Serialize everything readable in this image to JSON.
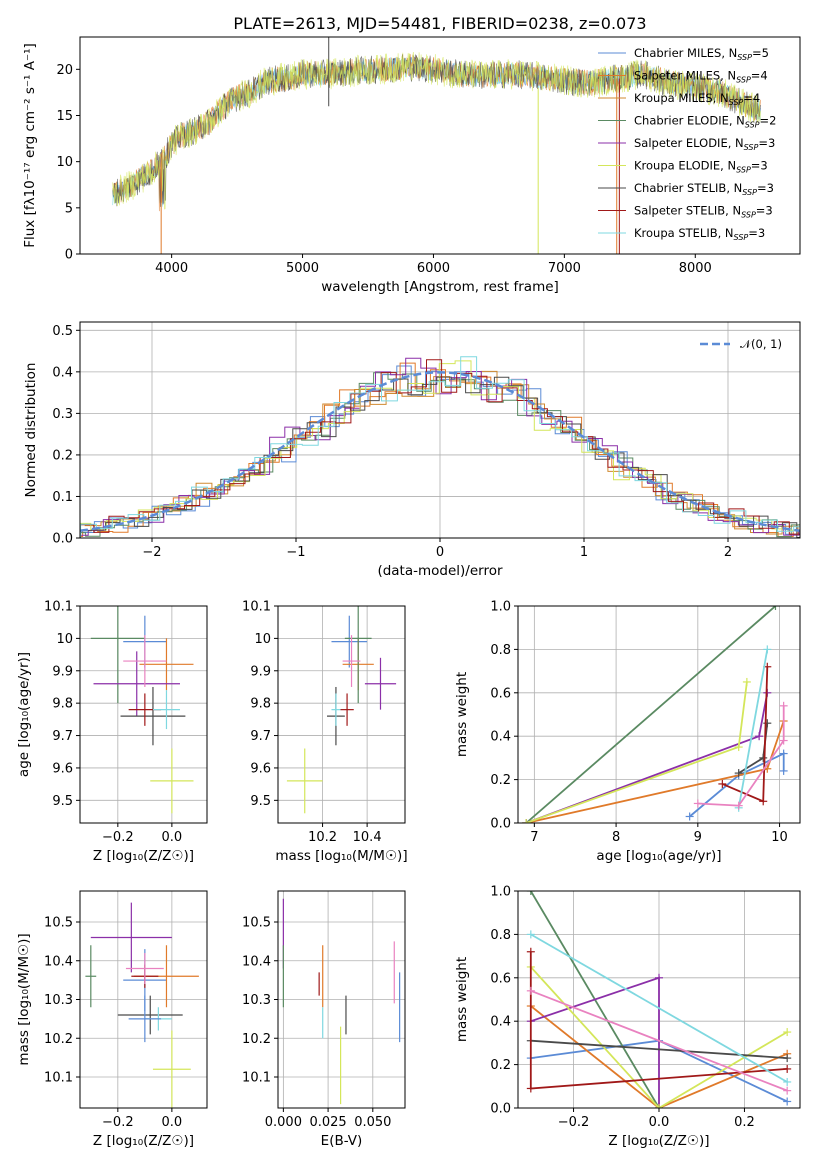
{
  "figure": {
    "title": "PLATE=2613, MJD=54481, FIBERID=0238, z=0.073"
  },
  "colors": {
    "Chabrier MILES": "#5b8bd6",
    "Salpeter MILES": "#e07a2a",
    "Kroupa MILES": "#d08a30",
    "Chabrier ELODIE": "#5a8a62",
    "Salpeter ELODIE": "#8b2fa8",
    "Kroupa ELODIE": "#d4e65a",
    "Chabrier STELIB": "#4a4a4a",
    "Salpeter STELIB": "#a01818",
    "Kroupa STELIB": "#7fd8e0",
    "pink": "#e982c0",
    "gaussian": "#5b8bd6"
  },
  "chart_data": [
    {
      "id": "spectrum",
      "type": "line",
      "title": "PLATE=2613, MJD=54481, FIBERID=0238, z=0.073",
      "xlabel": "wavelength [Angstrom, rest frame]",
      "ylabel": "Flux [fλ10⁻¹⁷ erg cm⁻² s⁻¹ A⁻¹]",
      "xlim": [
        3300,
        8800
      ],
      "ylim": [
        0,
        23.5
      ],
      "xticks": [
        4000,
        5000,
        6000,
        7000,
        8000
      ],
      "yticks": [
        0,
        5,
        10,
        15,
        20
      ],
      "grid": false,
      "legend_position": "top-right",
      "continuum": {
        "x": [
          3550,
          3700,
          3850,
          3950,
          4000,
          4100,
          4200,
          4300,
          4400,
          4500,
          4600,
          4700,
          4800,
          4900,
          5000,
          5200,
          5400,
          5600,
          5800,
          6000,
          6200,
          6400,
          6600,
          6800,
          7000,
          7200,
          7400,
          7600,
          7800,
          8000,
          8200,
          8400,
          8500
        ],
        "y": [
          6.5,
          7.5,
          9.0,
          10.5,
          12.0,
          13.0,
          13.5,
          14.5,
          16.0,
          17.0,
          17.5,
          18.5,
          19.0,
          19.0,
          19.5,
          19.5,
          19.8,
          20.0,
          20.3,
          20.0,
          19.5,
          19.3,
          19.5,
          19.2,
          18.8,
          18.5,
          19.0,
          19.5,
          18.5,
          18.0,
          17.5,
          16.0,
          15.5
        ]
      },
      "legend": [
        "Chabrier MILES, NSSP=5",
        "Salpeter MILES, NSSP=4",
        "Kroupa MILES, NSSP=4",
        "Chabrier ELODIE, NSSP=2",
        "Salpeter ELODIE, NSSP=3",
        "Kroupa ELODIE, NSSP=3",
        "Chabrier STELIB, NSSP=3",
        "Salpeter STELIB, NSSP=3",
        "Kroupa STELIB, NSSP=3"
      ]
    },
    {
      "id": "residuals",
      "type": "bar",
      "xlabel": "(data-model)/error",
      "ylabel": "Normed distribution",
      "xlim": [
        -2.5,
        2.5
      ],
      "ylim": [
        0,
        0.52
      ],
      "xticks": [
        -2,
        -1,
        0,
        1,
        2
      ],
      "yticks": [
        0.0,
        0.1,
        0.2,
        0.3,
        0.4,
        0.5
      ],
      "grid": true,
      "legend_position": "top-right",
      "gaussian_label": "𝒩(0, 1)",
      "series_colors": [
        "Chabrier MILES",
        "Salpeter MILES",
        "Kroupa MILES",
        "Chabrier ELODIE",
        "Salpeter ELODIE",
        "Kroupa ELODIE",
        "Chabrier STELIB",
        "Salpeter STELIB",
        "Kroupa STELIB"
      ]
    },
    {
      "id": "age_Z",
      "type": "scatter",
      "xlabel": "Z [log₁₀(Z/Z☉)]",
      "ylabel": "age  [log₁₀(age/yr)]",
      "xlim": [
        -0.34,
        0.13
      ],
      "ylim": [
        9.43,
        10.1
      ],
      "xticks": [
        -0.2,
        0.0
      ],
      "xticklabels": [
        "−0.2",
        "0.0"
      ],
      "yticks": [
        9.5,
        9.6,
        9.7,
        9.8,
        9.9,
        10.0,
        10.1
      ],
      "grid": true,
      "points": [
        {
          "color": "Chabrier MILES",
          "x": -0.1,
          "y": 9.99,
          "xerr": 0.08,
          "yerr": 0.08
        },
        {
          "color": "Salpeter MILES",
          "x": -0.02,
          "y": 9.92,
          "xerr": 0.1,
          "yerr": 0.08
        },
        {
          "color": "Chabrier ELODIE",
          "x": -0.2,
          "y": 10.0,
          "xerr": 0.1,
          "yerr": 0.2
        },
        {
          "color": "Salpeter ELODIE",
          "x": -0.13,
          "y": 9.86,
          "xerr": 0.16,
          "yerr": 0.1
        },
        {
          "color": "Kroupa ELODIE",
          "x": 0.0,
          "y": 9.56,
          "xerr": 0.08,
          "yerr": 0.1
        },
        {
          "color": "Chabrier STELIB",
          "x": -0.07,
          "y": 9.76,
          "xerr": 0.12,
          "yerr": 0.09
        },
        {
          "color": "Salpeter STELIB",
          "x": -0.1,
          "y": 9.78,
          "xerr": 0.06,
          "yerr": 0.05
        },
        {
          "color": "Kroupa STELIB",
          "x": -0.02,
          "y": 9.78,
          "xerr": 0.05,
          "yerr": 0.06
        },
        {
          "color": "pink",
          "x": -0.1,
          "y": 9.93,
          "xerr": 0.08,
          "yerr": 0.08
        }
      ]
    },
    {
      "id": "age_mass",
      "type": "scatter",
      "xlabel": "mass [log₁₀(M/M☉)]",
      "ylabel": "",
      "xlim": [
        10.0,
        10.57
      ],
      "ylim": [
        9.43,
        10.1
      ],
      "xticks": [
        10.2,
        10.4
      ],
      "yticks": [
        9.5,
        9.6,
        9.7,
        9.8,
        9.9,
        10.0,
        10.1
      ],
      "grid": true,
      "points": [
        {
          "color": "Chabrier MILES",
          "x": 10.32,
          "y": 9.99,
          "xerr": 0.08,
          "yerr": 0.08
        },
        {
          "color": "Salpeter MILES",
          "x": 10.36,
          "y": 9.92,
          "xerr": 0.07,
          "yerr": 0.08
        },
        {
          "color": "Chabrier ELODIE",
          "x": 10.36,
          "y": 10.0,
          "xerr": 0.06,
          "yerr": 0.2
        },
        {
          "color": "Salpeter ELODIE",
          "x": 10.46,
          "y": 9.86,
          "xerr": 0.07,
          "yerr": 0.08
        },
        {
          "color": "Kroupa ELODIE",
          "x": 10.12,
          "y": 9.56,
          "xerr": 0.08,
          "yerr": 0.1
        },
        {
          "color": "Chabrier STELIB",
          "x": 10.26,
          "y": 9.76,
          "xerr": 0.04,
          "yerr": 0.09
        },
        {
          "color": "Salpeter STELIB",
          "x": 10.31,
          "y": 9.78,
          "xerr": 0.03,
          "yerr": 0.05
        },
        {
          "color": "Kroupa STELIB",
          "x": 10.26,
          "y": 9.78,
          "xerr": 0.02,
          "yerr": 0.05
        },
        {
          "color": "pink",
          "x": 10.33,
          "y": 9.93,
          "xerr": 0.04,
          "yerr": 0.08
        }
      ]
    },
    {
      "id": "mw_age",
      "type": "line",
      "xlabel": "age  [log₁₀(age/yr)]",
      "ylabel": "mass weight",
      "xlim": [
        6.8,
        10.25
      ],
      "ylim": [
        0,
        1.0
      ],
      "xticks": [
        7,
        8,
        9,
        10
      ],
      "yticks": [
        0.0,
        0.2,
        0.4,
        0.6,
        0.8,
        1.0
      ],
      "grid": true,
      "series": [
        {
          "color": "Chabrier MILES",
          "x": [
            8.9,
            9.5,
            10.05,
            10.05
          ],
          "y": [
            0.03,
            0.22,
            0.32,
            0.24
          ]
        },
        {
          "color": "Salpeter MILES",
          "x": [
            6.9,
            9.85,
            10.05
          ],
          "y": [
            0.0,
            0.25,
            0.47
          ]
        },
        {
          "color": "Chabrier ELODIE",
          "x": [
            6.9,
            9.95
          ],
          "y": [
            0.0,
            1.0
          ]
        },
        {
          "color": "Salpeter ELODIE",
          "x": [
            6.9,
            9.75,
            9.85
          ],
          "y": [
            0.0,
            0.4,
            0.6
          ]
        },
        {
          "color": "Kroupa ELODIE",
          "x": [
            6.9,
            9.5,
            9.6
          ],
          "y": [
            0.0,
            0.35,
            0.65
          ]
        },
        {
          "color": "Chabrier STELIB",
          "x": [
            9.5,
            9.8,
            9.85
          ],
          "y": [
            0.23,
            0.3,
            0.46
          ]
        },
        {
          "color": "Salpeter STELIB",
          "x": [
            9.3,
            9.8,
            9.85
          ],
          "y": [
            0.18,
            0.1,
            0.72
          ]
        },
        {
          "color": "Kroupa STELIB",
          "x": [
            9.5,
            9.85
          ],
          "y": [
            0.07,
            0.8
          ]
        },
        {
          "color": "pink",
          "x": [
            9.0,
            9.5,
            10.05,
            10.05
          ],
          "y": [
            0.09,
            0.08,
            0.38,
            0.54
          ]
        }
      ]
    },
    {
      "id": "mass_Z",
      "type": "scatter",
      "xlabel": "Z [log₁₀(Z/Z☉)]",
      "ylabel": "mass [log₁₀(M/M☉)]",
      "xlim": [
        -0.34,
        0.13
      ],
      "ylim": [
        10.02,
        10.58
      ],
      "xticks": [
        -0.2,
        0.0
      ],
      "xticklabels": [
        "−0.2",
        "0.0"
      ],
      "yticks": [
        10.1,
        10.2,
        10.3,
        10.4,
        10.5
      ],
      "grid": true,
      "points": [
        {
          "color": "Chabrier MILES",
          "x": -0.1,
          "y": 10.35,
          "xerr": 0.08,
          "yerr": 0.08
        },
        {
          "color": "Salpeter MILES",
          "x": -0.02,
          "y": 10.36,
          "xerr": 0.12,
          "yerr": 0.08
        },
        {
          "color": "Chabrier ELODIE",
          "x": -0.3,
          "y": 10.36,
          "xerr": 0.02,
          "yerr": 0.08
        },
        {
          "color": "Salpeter ELODIE",
          "x": -0.15,
          "y": 10.46,
          "xerr": 0.15,
          "yerr": 0.09
        },
        {
          "color": "Kroupa ELODIE",
          "x": 0.0,
          "y": 10.12,
          "xerr": 0.07,
          "yerr": 0.1
        },
        {
          "color": "Chabrier STELIB",
          "x": -0.08,
          "y": 10.26,
          "xerr": 0.12,
          "yerr": 0.05
        },
        {
          "color": "Salpeter STELIB",
          "x": -0.1,
          "y": 10.36,
          "xerr": 0.05,
          "yerr": 0.03
        },
        {
          "color": "Kroupa STELIB",
          "x": -0.05,
          "y": 10.25,
          "xerr": 0.05,
          "yerr": 0.03
        },
        {
          "color": "pink",
          "x": -0.1,
          "y": 10.38,
          "xerr": 0.07,
          "yerr": 0.04
        },
        {
          "color": "Chabrier MILES",
          "x": -0.1,
          "y": 10.25,
          "xerr": 0.06,
          "yerr": 0.06
        }
      ]
    },
    {
      "id": "mass_EBV",
      "type": "scatter",
      "xlabel": "E(B-V)",
      "ylabel": "",
      "xlim": [
        -0.003,
        0.068
      ],
      "ylim": [
        10.02,
        10.58
      ],
      "xticks": [
        0.0,
        0.025,
        0.05
      ],
      "xticklabels": [
        "0.000",
        "0.025",
        "0.050"
      ],
      "yticks": [
        10.1,
        10.2,
        10.3,
        10.4,
        10.5
      ],
      "grid": true,
      "points": [
        {
          "color": "Salpeter ELODIE",
          "x": 0.0,
          "y": 10.47,
          "xerr": 0.0,
          "yerr": 0.09
        },
        {
          "color": "Chabrier ELODIE",
          "x": 0.0,
          "y": 10.36,
          "xerr": 0.0,
          "yerr": 0.08
        },
        {
          "color": "Salpeter STELIB",
          "x": 0.02,
          "y": 10.34,
          "xerr": 0.0,
          "yerr": 0.03
        },
        {
          "color": "Salpeter MILES",
          "x": 0.022,
          "y": 10.36,
          "xerr": 0.0,
          "yerr": 0.08
        },
        {
          "color": "Kroupa STELIB",
          "x": 0.022,
          "y": 10.24,
          "xerr": 0.0,
          "yerr": 0.04
        },
        {
          "color": "Kroupa ELODIE",
          "x": 0.032,
          "y": 10.13,
          "xerr": 0.0,
          "yerr": 0.1
        },
        {
          "color": "Chabrier STELIB",
          "x": 0.035,
          "y": 10.26,
          "xerr": 0.0,
          "yerr": 0.05
        },
        {
          "color": "pink",
          "x": 0.062,
          "y": 10.37,
          "xerr": 0.0,
          "yerr": 0.08
        },
        {
          "color": "Chabrier MILES",
          "x": 0.065,
          "y": 10.28,
          "xerr": 0.0,
          "yerr": 0.09
        }
      ]
    },
    {
      "id": "mw_Z",
      "type": "line",
      "xlabel": "Z [log₁₀(Z/Z☉)]",
      "ylabel": "mass weight",
      "xlim": [
        -0.33,
        0.33
      ],
      "ylim": [
        0,
        1.0
      ],
      "xticks": [
        -0.2,
        0.0,
        0.2
      ],
      "xticklabels": [
        "−0.2",
        "0.0",
        "0.2"
      ],
      "yticks": [
        0.0,
        0.2,
        0.4,
        0.6,
        0.8,
        1.0
      ],
      "grid": true,
      "series": [
        {
          "color": "Chabrier MILES",
          "x": [
            -0.3,
            0.0,
            0.3
          ],
          "y": [
            0.23,
            0.31,
            0.03
          ]
        },
        {
          "color": "Salpeter MILES",
          "x": [
            -0.3,
            0.0,
            0.3
          ],
          "y": [
            0.47,
            0.0,
            0.25
          ]
        },
        {
          "color": "Chabrier ELODIE",
          "x": [
            -0.3,
            0.0
          ],
          "y": [
            1.0,
            0.0
          ]
        },
        {
          "color": "Salpeter ELODIE",
          "x": [
            -0.3,
            0.0,
            0.0
          ],
          "y": [
            0.4,
            0.6,
            0.0
          ]
        },
        {
          "color": "Kroupa ELODIE",
          "x": [
            -0.3,
            0.0,
            0.3
          ],
          "y": [
            0.65,
            0.0,
            0.35
          ]
        },
        {
          "color": "Chabrier STELIB",
          "x": [
            -0.3,
            0.3
          ],
          "y": [
            0.31,
            0.23
          ]
        },
        {
          "color": "Salpeter STELIB",
          "x": [
            -0.3,
            -0.3,
            0.3
          ],
          "y": [
            0.72,
            0.09,
            0.18
          ]
        },
        {
          "color": "Kroupa STELIB",
          "x": [
            -0.3,
            0.3
          ],
          "y": [
            0.8,
            0.12
          ]
        },
        {
          "color": "pink",
          "x": [
            -0.3,
            0.3
          ],
          "y": [
            0.54,
            0.08
          ]
        }
      ]
    }
  ]
}
